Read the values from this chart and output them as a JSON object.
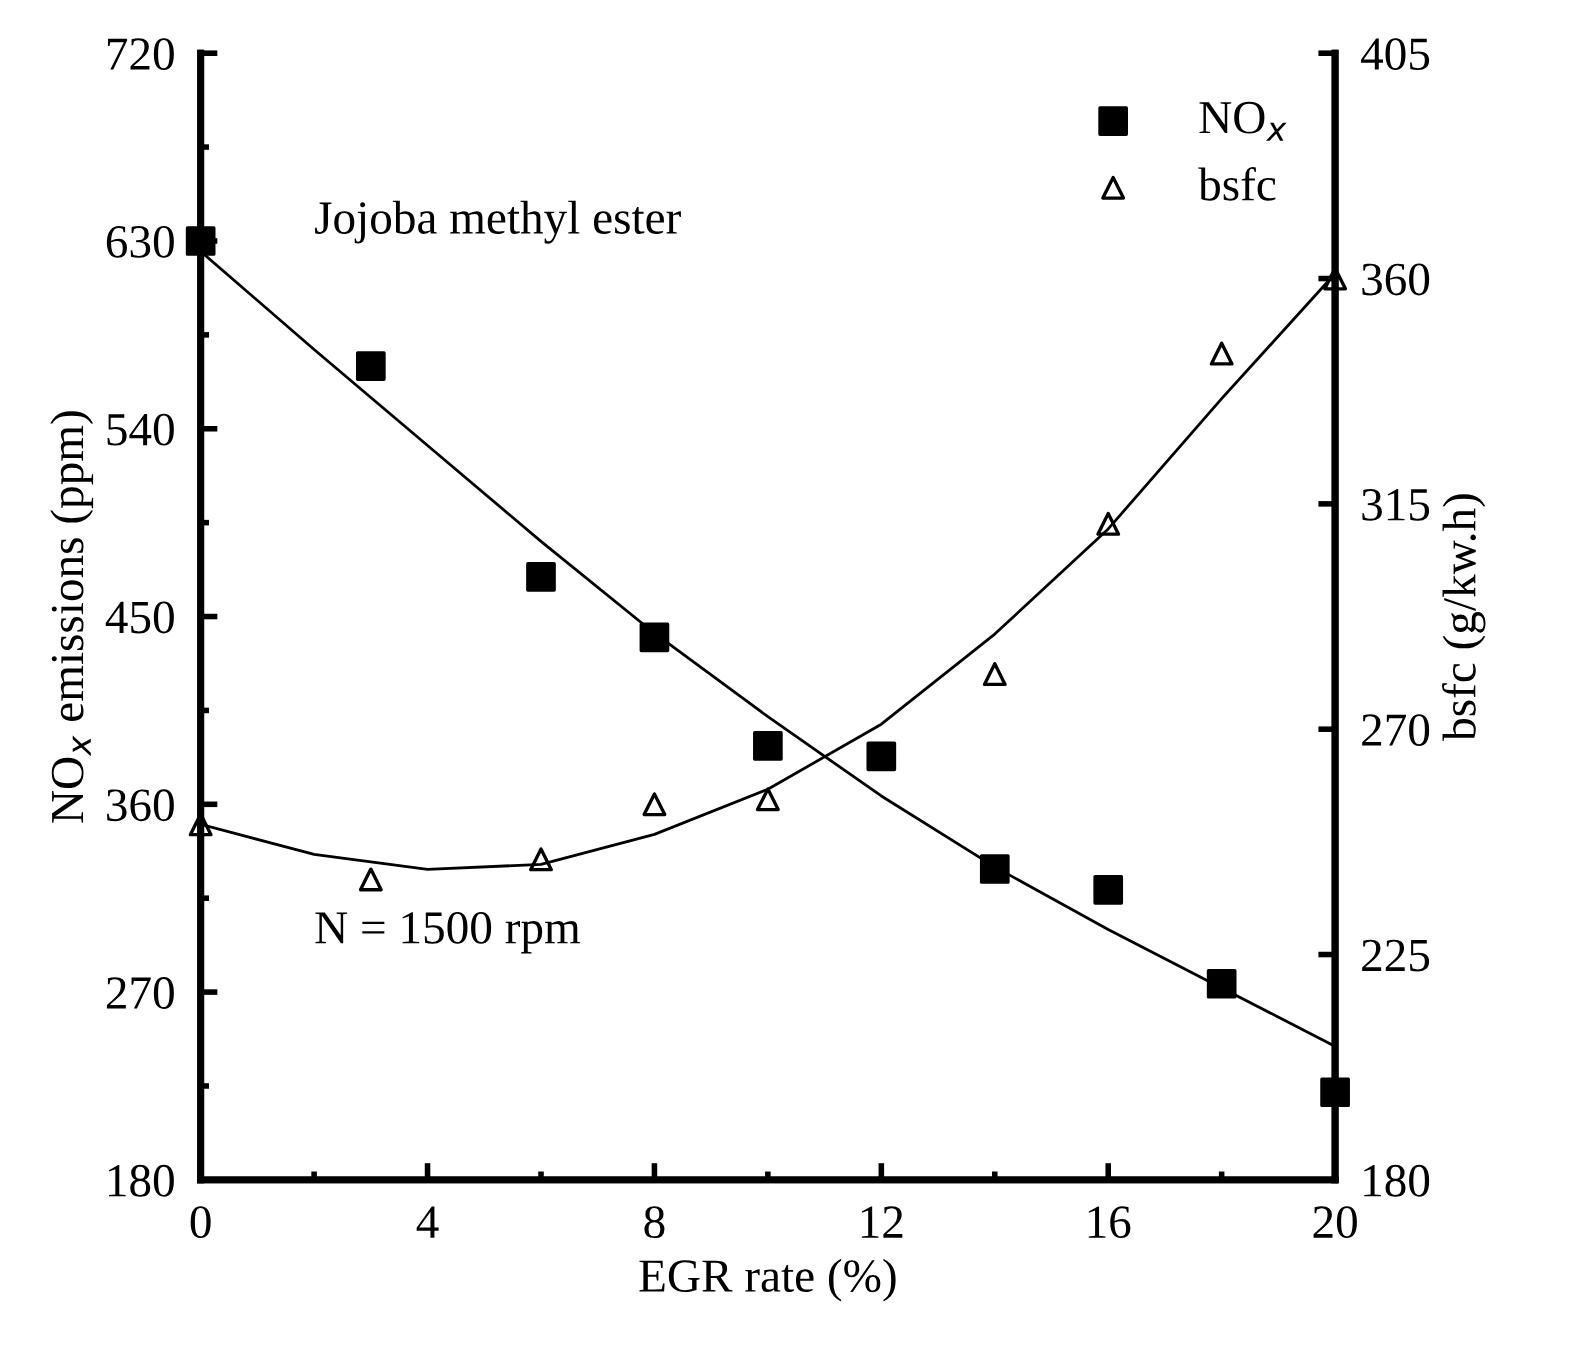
{
  "chart_data": {
    "type": "scatter",
    "xlabel": "EGR rate (%)",
    "ylabel": "NO$_{x}$ emissions (ppm)",
    "y2label": "bsfc (g/kw.h)",
    "annotations": [
      "Jojoba methyl ester",
      "N = 1500 rpm"
    ],
    "x": [
      0,
      3,
      6,
      8,
      10,
      12,
      14,
      16,
      18,
      20
    ],
    "series": [
      {
        "name": "NO$_{x}$",
        "color": "#000000",
        "marker": "square",
        "values": [
          630,
          570,
          469,
          440,
          388,
          383,
          329,
          319,
          274,
          222
        ]
      },
      {
        "name": "bsfc",
        "color": "#000000",
        "marker": "triangle",
        "axis": "y2",
        "values": [
          251,
          240,
          244,
          255,
          256,
          null,
          281,
          311,
          345,
          360
        ]
      },
      {
        "type": "line",
        "color": "#000000",
        "marker": "none",
        "x": [
          0,
          2,
          4,
          6,
          8,
          10,
          12,
          14,
          16,
          18,
          20
        ],
        "values": [
          625,
          578,
          532,
          486,
          442,
          402,
          364,
          330,
          300,
          272,
          244
        ]
      },
      {
        "type": "line",
        "color": "#000000",
        "marker": "none",
        "axis": "y2",
        "x": [
          0,
          2,
          4,
          6,
          8,
          10,
          12,
          14,
          16,
          18,
          20
        ],
        "values": [
          251,
          245,
          242,
          243,
          249,
          258,
          271,
          289,
          310,
          336,
          361
        ]
      }
    ],
    "xlim": [
      0,
      20
    ],
    "xticks": [
      0,
      {
        "value": 2,
        "label": null
      },
      4,
      {
        "value": 6,
        "label": null
      },
      8,
      {
        "value": 10,
        "label": null
      },
      12,
      {
        "value": 14,
        "label": null
      },
      16,
      {
        "value": 18,
        "label": null
      },
      20
    ],
    "ylim": [
      180,
      720
    ],
    "yticks": [
      180,
      {
        "value": 225,
        "label": null
      },
      270,
      {
        "value": 315,
        "label": null
      },
      360,
      {
        "value": 405,
        "label": null
      },
      450,
      {
        "value": 495,
        "label": null
      },
      540,
      {
        "value": 585,
        "label": null
      },
      630,
      {
        "value": 675,
        "label": null
      },
      720
    ],
    "y2lim": [
      180,
      405
    ],
    "y2ticks": [
      180,
      225,
      270,
      315,
      360,
      405
    ],
    "legend": "top right",
    "grid": false
  }
}
